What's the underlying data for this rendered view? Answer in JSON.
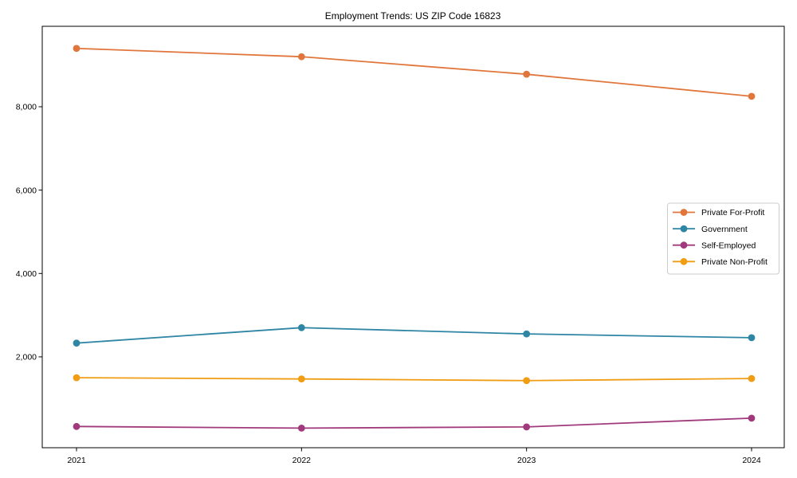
{
  "chart_data": {
    "type": "line",
    "title": "Employment Trends: US ZIP Code 16823",
    "categories": [
      "2021",
      "2022",
      "2023",
      "2024"
    ],
    "series": [
      {
        "name": "Private For-Profit",
        "color": "#e1763c",
        "values": [
          9400,
          9200,
          8780,
          8250
        ]
      },
      {
        "name": "Government",
        "color": "#2e85a4",
        "values": [
          2330,
          2700,
          2550,
          2460
        ]
      },
      {
        "name": "Self-Employed",
        "color": "#a13a7c",
        "values": [
          330,
          290,
          320,
          530
        ]
      },
      {
        "name": "Private Non-Profit",
        "color": "#f09d13",
        "values": [
          1500,
          1470,
          1430,
          1480
        ]
      }
    ],
    "xlabel": "",
    "ylabel": "",
    "ylim": [
      -180,
      9930
    ],
    "yticks": [
      2000,
      4000,
      6000,
      8000
    ],
    "ytick_labels": [
      "2,000",
      "4,000",
      "6,000",
      "8,000"
    ],
    "grid": false,
    "legend": {
      "position": "center-right",
      "border_color": "#cccccc",
      "background": "#ffffff"
    },
    "axis_color": "#000000"
  }
}
